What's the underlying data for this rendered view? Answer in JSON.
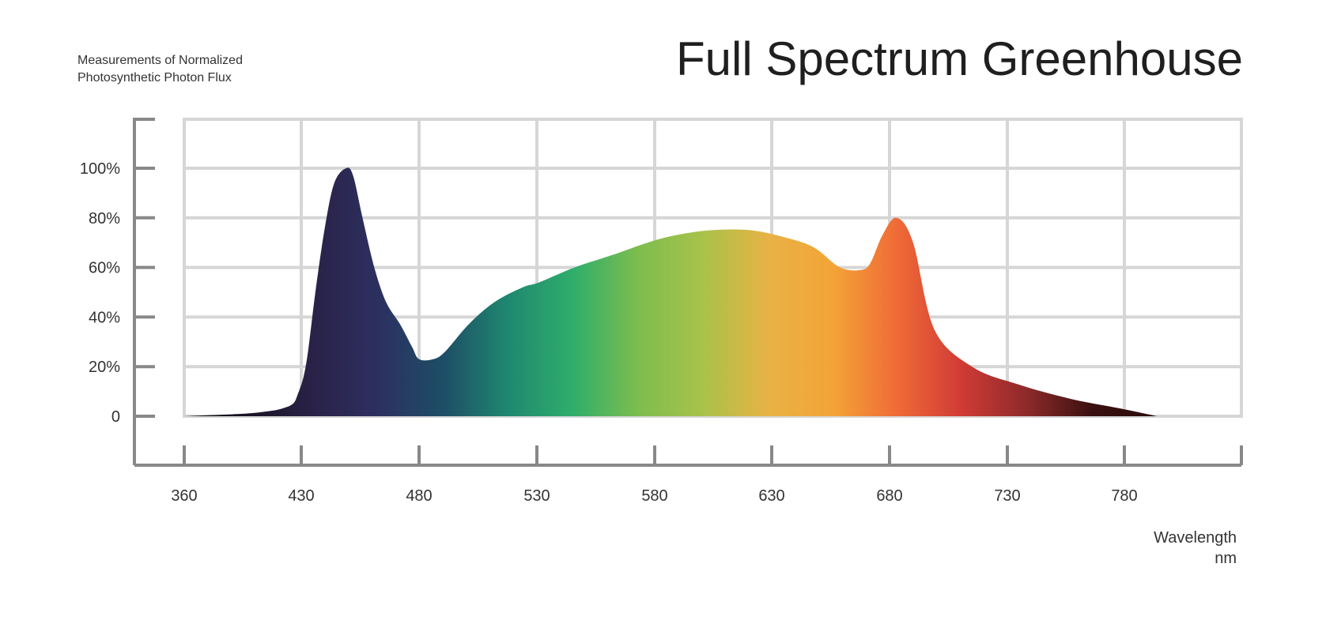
{
  "chart_data": {
    "type": "area",
    "title": "Full Spectrum Greenhouse",
    "subtitle": [
      "Measurements of Normalized",
      "Photosynthetic Photon Flux"
    ],
    "xlabel": [
      "Wavelength",
      "nm"
    ],
    "ylabel": "",
    "x_tick_labels": [
      "360",
      "430",
      "480",
      "530",
      "580",
      "630",
      "680",
      "730",
      "780"
    ],
    "y_tick_labels": [
      "0",
      "20%",
      "40%",
      "60%",
      "80%",
      "100%"
    ],
    "grid": true,
    "series": [
      {
        "x": [
          360,
          395,
          410,
          418,
          425,
          428,
          431,
          433,
          436,
          440,
          444,
          449,
          452,
          456,
          461,
          466,
          472,
          477,
          480,
          486,
          491,
          501,
          512,
          524,
          531,
          546,
          562,
          577,
          589,
          604,
          621,
          636,
          648,
          659,
          668,
          672,
          677,
          683,
          690,
          699,
          715,
          734,
          757,
          779,
          794
        ],
        "values": [
          0,
          1,
          2,
          3,
          5,
          9,
          16,
          27,
          50,
          76,
          94,
          100,
          97,
          80,
          60,
          46,
          37,
          28,
          23,
          23,
          26,
          37,
          46,
          52,
          54,
          60,
          65,
          70,
          73,
          75,
          75,
          72,
          68,
          60,
          59,
          62,
          73,
          80,
          70,
          35,
          20,
          13,
          7,
          3,
          0
        ]
      }
    ],
    "gradient_colors": [
      "#121010",
      "#1b1426",
      "#2a2248",
      "#2c3060",
      "#1d4e66",
      "#1f8870",
      "#2fae6b",
      "#7dbd4e",
      "#a9c24a",
      "#e8b245",
      "#f3a437",
      "#ef6a37",
      "#cf3a35",
      "#8c2a2a",
      "#3a1010",
      "#2a0c0c"
    ]
  }
}
